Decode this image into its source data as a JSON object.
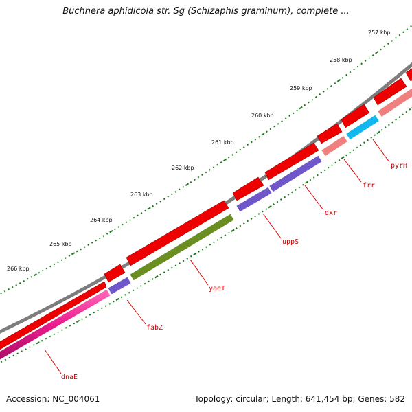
{
  "title": "Buchnera aphidicola str. Sg (Schizaphis graminum), complete ...",
  "footer": {
    "accession": "Accession: NC_004061",
    "info": "Topology: circular; Length: 641,454 bp; Genes: 582"
  },
  "ticks": [
    "257 kbp",
    "258 kbp",
    "259 kbp",
    "260 kbp",
    "261 kbp",
    "262 kbp",
    "263 kbp",
    "264 kbp",
    "265 kbp",
    "266 kbp"
  ],
  "genes": [
    "pyrH",
    "frr",
    "dxr",
    "uppS",
    "yaeT",
    "fabZ",
    "dnaE"
  ],
  "colors": {
    "backbone": "#7d7d7d",
    "forward": "#ee0000",
    "tick": "#1a7a1a",
    "label": "#d40000",
    "cyan": "#11b7ee",
    "salmon": "#f07f7f",
    "purple": "#6f57c9",
    "olive": "#6b8e23",
    "magenta": "#ea1a8c"
  }
}
